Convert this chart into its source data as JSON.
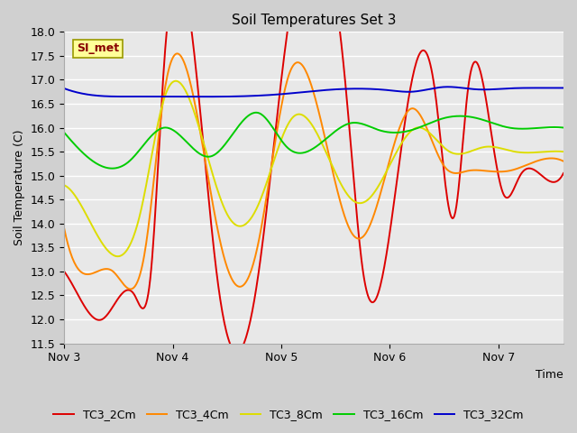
{
  "title": "Soil Temperatures Set 3",
  "xlabel": "Time",
  "ylabel": "Soil Temperature (C)",
  "ylim": [
    11.5,
    18.0
  ],
  "yticks": [
    11.5,
    12.0,
    12.5,
    13.0,
    13.5,
    14.0,
    14.5,
    15.0,
    15.5,
    16.0,
    16.5,
    17.0,
    17.5,
    18.0
  ],
  "xtick_labels": [
    "Nov 3",
    "Nov 4",
    "Nov 5",
    "Nov 6",
    "Nov 7"
  ],
  "xtick_pos": [
    0,
    1,
    2,
    3,
    4
  ],
  "xlim": [
    0,
    4.6
  ],
  "colors": {
    "TC3_2Cm": "#dd0000",
    "TC3_4Cm": "#ff8800",
    "TC3_8Cm": "#dddd00",
    "TC3_16Cm": "#00cc00",
    "TC3_32Cm": "#0000cc"
  },
  "legend_label": "SI_met",
  "legend_bg": "#ffff99",
  "legend_border": "#999900",
  "line_width": 1.4,
  "TC3_2Cm_x": [
    0.0,
    0.13,
    0.35,
    0.65,
    0.8,
    0.92,
    1.42,
    1.78,
    2.05,
    2.6,
    2.75,
    3.18,
    3.42,
    3.6,
    3.72,
    3.87,
    4.05,
    4.2,
    4.4,
    4.6
  ],
  "TC3_2Cm_y": [
    13.0,
    12.5,
    12.0,
    12.5,
    13.0,
    17.3,
    12.7,
    12.8,
    17.9,
    16.7,
    13.05,
    16.7,
    16.7,
    14.2,
    16.8,
    16.8,
    14.6,
    15.0,
    15.0,
    15.05
  ],
  "TC3_4Cm_x": [
    0.0,
    0.15,
    0.45,
    0.75,
    0.92,
    1.45,
    1.78,
    2.07,
    2.65,
    2.78,
    3.2,
    3.5,
    3.72,
    3.88,
    4.1,
    4.35,
    4.6
  ],
  "TC3_4Cm_y": [
    13.9,
    13.0,
    13.0,
    13.5,
    16.7,
    13.5,
    13.5,
    17.1,
    13.8,
    13.8,
    16.4,
    15.2,
    15.1,
    15.1,
    15.1,
    15.3,
    15.3
  ],
  "TC3_8Cm_x": [
    0.0,
    0.2,
    0.7,
    0.92,
    1.5,
    1.8,
    2.1,
    2.65,
    2.8,
    3.25,
    3.55,
    3.88,
    4.15,
    4.45,
    4.6
  ],
  "TC3_8Cm_y": [
    14.8,
    14.2,
    14.2,
    16.6,
    14.2,
    14.45,
    16.2,
    14.5,
    14.5,
    16.0,
    15.5,
    15.6,
    15.5,
    15.5,
    15.5
  ],
  "TC3_16Cm_x": [
    0.0,
    0.3,
    0.6,
    0.92,
    1.35,
    1.8,
    2.05,
    2.65,
    2.9,
    3.2,
    3.5,
    3.8,
    4.1,
    4.4,
    4.6
  ],
  "TC3_16Cm_y": [
    15.9,
    15.25,
    15.3,
    16.0,
    15.4,
    16.3,
    15.6,
    16.1,
    15.95,
    15.95,
    16.2,
    16.2,
    16.0,
    16.0,
    16.0
  ],
  "TC3_32Cm_x": [
    0.0,
    0.3,
    0.6,
    0.92,
    1.5,
    2.0,
    2.5,
    3.0,
    3.2,
    3.5,
    3.8,
    4.1,
    4.4,
    4.6
  ],
  "TC3_32Cm_y": [
    16.82,
    16.67,
    16.65,
    16.65,
    16.65,
    16.7,
    16.8,
    16.78,
    16.75,
    16.85,
    16.8,
    16.82,
    16.83,
    16.83
  ]
}
